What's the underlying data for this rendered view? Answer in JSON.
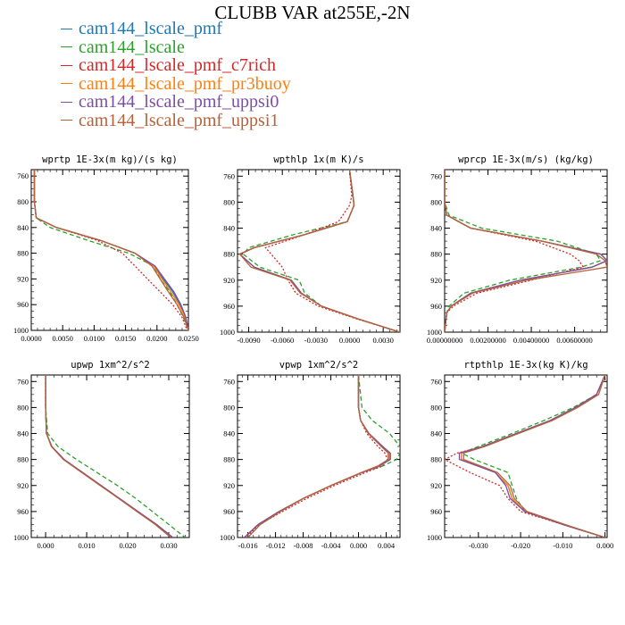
{
  "title": "CLUBB VAR at255E,-2N",
  "legend": [
    {
      "name": "cam144_lscale_pmf",
      "color": "#1f77b4"
    },
    {
      "name": "cam144_lscale",
      "color": "#2ca02c"
    },
    {
      "name": "cam144_lscale_pmf_c7rich",
      "color": "#d62728"
    },
    {
      "name": "cam144_lscale_pmf_pr3buoy",
      "color": "#ff7f0e"
    },
    {
      "name": "cam144_lscale_pmf_uppsi0",
      "color": "#7b4fa0"
    },
    {
      "name": "cam144_lscale_pmf_uppsi1",
      "color": "#b5623a"
    }
  ],
  "chart_data": [
    {
      "type": "line",
      "title": "wprtp  1E-3x(m kg)/(s kg)",
      "xlim": [
        0,
        0.025
      ],
      "ylim": [
        1000,
        750
      ],
      "xticks": [
        "0.0000",
        "0.0050",
        "0.0100",
        "0.0150",
        "0.0200",
        "0.0250"
      ],
      "xtick_values": [
        0,
        0.005,
        0.01,
        0.015,
        0.02,
        0.025
      ],
      "yticks": [
        "760",
        "800",
        "840",
        "880",
        "920",
        "960",
        "1000"
      ],
      "ytick_values": [
        760,
        800,
        840,
        880,
        920,
        960,
        1000
      ],
      "y": [
        750,
        800,
        825,
        840,
        860,
        880,
        900,
        920,
        940,
        960,
        980,
        1000
      ],
      "series": [
        {
          "color": "#1f77b4",
          "dash": "",
          "values": [
            0.0005,
            0.0005,
            0.0008,
            0.004,
            0.011,
            0.0165,
            0.0195,
            0.021,
            0.0225,
            0.0237,
            0.0245,
            0.025
          ]
        },
        {
          "color": "#2ca02c",
          "dash": "5,3",
          "values": [
            0.0005,
            0.0005,
            0.0008,
            0.003,
            0.009,
            0.0155,
            0.0195,
            0.0205,
            0.022,
            0.0232,
            0.0242,
            0.025
          ]
        },
        {
          "color": "#d62728",
          "dash": "2,2",
          "values": [
            0.0005,
            0.0005,
            0.0008,
            0.004,
            0.0105,
            0.0145,
            0.0165,
            0.0185,
            0.0205,
            0.0225,
            0.024,
            0.0248
          ]
        },
        {
          "color": "#ff7f0e",
          "dash": "",
          "values": [
            0.0005,
            0.0005,
            0.0008,
            0.004,
            0.011,
            0.0165,
            0.0195,
            0.0208,
            0.0222,
            0.0235,
            0.0245,
            0.025
          ]
        },
        {
          "color": "#7b4fa0",
          "dash": "",
          "values": [
            0.0005,
            0.0005,
            0.0008,
            0.004,
            0.011,
            0.0165,
            0.0197,
            0.0212,
            0.0227,
            0.0238,
            0.0246,
            0.025
          ]
        },
        {
          "color": "#b5623a",
          "dash": "",
          "values": [
            0.0005,
            0.0005,
            0.0008,
            0.004,
            0.011,
            0.0165,
            0.0192,
            0.0205,
            0.0218,
            0.0232,
            0.0243,
            0.025
          ]
        }
      ]
    },
    {
      "type": "line",
      "title": "wpthlp  1x(m K)/s",
      "xlim": [
        -0.01,
        0.0045
      ],
      "ylim": [
        1000,
        750
      ],
      "xticks": [
        "-0.0090",
        "-0.0060",
        "-0.0030",
        "0.0000",
        "0.0030"
      ],
      "xtick_values": [
        -0.009,
        -0.006,
        -0.003,
        0,
        0.003
      ],
      "yticks": [
        "760",
        "800",
        "840",
        "880",
        "920",
        "960",
        "1000"
      ],
      "ytick_values": [
        760,
        800,
        840,
        880,
        920,
        960,
        1000
      ],
      "y": [
        750,
        790,
        805,
        830,
        850,
        870,
        880,
        900,
        920,
        940,
        960,
        980,
        1000
      ],
      "series": [
        {
          "color": "#1f77b4",
          "dash": "",
          "values": [
            0.0,
            0.0003,
            0.0004,
            -0.0002,
            -0.004,
            -0.0085,
            -0.0098,
            -0.0085,
            -0.0052,
            -0.0043,
            -0.0025,
            0.0008,
            0.0045
          ]
        },
        {
          "color": "#2ca02c",
          "dash": "5,3",
          "values": [
            0.0,
            0.0003,
            0.0004,
            -0.0002,
            -0.005,
            -0.009,
            -0.0095,
            -0.008,
            -0.0045,
            -0.004,
            -0.0025,
            0.0008,
            0.0045
          ]
        },
        {
          "color": "#d62728",
          "dash": "2,2",
          "values": [
            0.0,
            0.0002,
            0.0,
            -0.001,
            -0.004,
            -0.0075,
            -0.007,
            -0.006,
            -0.0055,
            -0.0048,
            -0.0028,
            0.0007,
            0.0045
          ]
        },
        {
          "color": "#ff7f0e",
          "dash": "",
          "values": [
            0.0,
            0.0003,
            0.0004,
            -0.0002,
            -0.004,
            -0.0085,
            -0.0098,
            -0.0085,
            -0.0052,
            -0.0043,
            -0.0025,
            0.0008,
            0.0045
          ]
        },
        {
          "color": "#7b4fa0",
          "dash": "",
          "values": [
            0.0,
            0.0003,
            0.0004,
            -0.0002,
            -0.004,
            -0.0085,
            -0.0098,
            -0.0085,
            -0.0052,
            -0.0043,
            -0.0025,
            0.0008,
            0.0045
          ]
        },
        {
          "color": "#b5623a",
          "dash": "",
          "values": [
            0.0,
            0.0003,
            0.0004,
            -0.0002,
            -0.004,
            -0.0085,
            -0.0098,
            -0.0088,
            -0.0053,
            -0.0044,
            -0.0025,
            0.0008,
            0.0045
          ]
        }
      ]
    },
    {
      "type": "line",
      "title": "wprcp  1E-3x(m/s) (kg/kg)",
      "xlim": [
        0,
        0.0075
      ],
      "ylim": [
        1000,
        750
      ],
      "xticks": [
        "0.00000000",
        "0.00200000",
        "0.00400000",
        "0.00600000"
      ],
      "xtick_values": [
        0,
        0.002,
        0.004,
        0.006
      ],
      "yticks": [
        "760",
        "800",
        "840",
        "880",
        "920",
        "960",
        "1000"
      ],
      "ytick_values": [
        760,
        800,
        840,
        880,
        920,
        960,
        1000
      ],
      "y": [
        750,
        800,
        820,
        840,
        860,
        880,
        890,
        900,
        920,
        940,
        960,
        970,
        1000
      ],
      "series": [
        {
          "color": "#1f77b4",
          "dash": "",
          "values": [
            0,
            0,
            0.0001,
            0.0012,
            0.0045,
            0.0072,
            0.0075,
            0.0068,
            0.0035,
            0.0012,
            0.0003,
            0.0001,
            0
          ]
        },
        {
          "color": "#2ca02c",
          "dash": "5,3",
          "values": [
            0,
            0,
            0.0002,
            0.0017,
            0.0052,
            0.007,
            0.0072,
            0.0063,
            0.003,
            0.0009,
            0.0002,
            0.0001,
            0
          ]
        },
        {
          "color": "#d62728",
          "dash": "2,2",
          "values": [
            0,
            0,
            0.0001,
            0.0012,
            0.0042,
            0.0058,
            0.0062,
            0.0064,
            0.004,
            0.0015,
            0.0004,
            0.0001,
            0
          ]
        },
        {
          "color": "#ff7f0e",
          "dash": "",
          "values": [
            0,
            0,
            0.0001,
            0.0012,
            0.0045,
            0.0072,
            0.0075,
            0.0068,
            0.0035,
            0.0012,
            0.0003,
            0.0001,
            0
          ]
        },
        {
          "color": "#7b4fa0",
          "dash": "",
          "values": [
            0,
            0,
            0.0001,
            0.0012,
            0.0045,
            0.0072,
            0.0075,
            0.0068,
            0.0035,
            0.0012,
            0.0003,
            0.0001,
            0
          ]
        },
        {
          "color": "#b5623a",
          "dash": "",
          "values": [
            0,
            0,
            0.0001,
            0.0012,
            0.0045,
            0.007,
            0.0074,
            0.0075,
            0.0038,
            0.0013,
            0.0003,
            0.0001,
            0
          ]
        }
      ]
    },
    {
      "type": "line",
      "title": "upwp  1xm^2/s^2",
      "xlim": [
        -0.0035,
        0.035
      ],
      "ylim": [
        1000,
        750
      ],
      "xticks": [
        "0.000",
        "0.010",
        "0.020",
        "0.030"
      ],
      "xtick_values": [
        0,
        0.01,
        0.02,
        0.03
      ],
      "yticks": [
        "760",
        "800",
        "840",
        "880",
        "920",
        "960",
        "1000"
      ],
      "ytick_values": [
        760,
        800,
        840,
        880,
        920,
        960,
        1000
      ],
      "y": [
        750,
        800,
        840,
        860,
        880,
        900,
        920,
        940,
        960,
        980,
        1000
      ],
      "series": [
        {
          "color": "#1f77b4",
          "dash": "",
          "values": [
            0.0,
            0.0,
            0.0002,
            0.0015,
            0.0045,
            0.009,
            0.0135,
            0.018,
            0.0225,
            0.027,
            0.031
          ]
        },
        {
          "color": "#2ca02c",
          "dash": "5,3",
          "values": [
            0.0,
            0.0,
            0.0005,
            0.003,
            0.0075,
            0.0125,
            0.0175,
            0.022,
            0.026,
            0.03,
            0.034
          ]
        },
        {
          "color": "#d62728",
          "dash": "2,2",
          "values": [
            0.0,
            0.0,
            0.0002,
            0.0015,
            0.0045,
            0.009,
            0.0135,
            0.018,
            0.0225,
            0.027,
            0.031
          ]
        },
        {
          "color": "#ff7f0e",
          "dash": "",
          "values": [
            0.0,
            0.0,
            0.0002,
            0.0015,
            0.0045,
            0.009,
            0.0135,
            0.018,
            0.0225,
            0.027,
            0.031
          ]
        },
        {
          "color": "#7b4fa0",
          "dash": "",
          "values": [
            0.0,
            0.0,
            0.0002,
            0.0015,
            0.0045,
            0.009,
            0.0135,
            0.018,
            0.0225,
            0.027,
            0.031
          ]
        },
        {
          "color": "#b5623a",
          "dash": "",
          "values": [
            0.0,
            0.0,
            0.0002,
            0.0014,
            0.0043,
            0.0088,
            0.0133,
            0.0178,
            0.0222,
            0.0267,
            0.0305
          ]
        }
      ]
    },
    {
      "type": "line",
      "title": "vpwp  1xm^2/s^2",
      "xlim": [
        -0.0175,
        0.006
      ],
      "ylim": [
        1000,
        750
      ],
      "xticks": [
        "-0.016",
        "-0.012",
        "-0.008",
        "-0.004",
        "0.000",
        "0.004"
      ],
      "xtick_values": [
        -0.016,
        -0.012,
        -0.008,
        -0.004,
        0,
        0.004
      ],
      "yticks": [
        "760",
        "800",
        "840",
        "880",
        "920",
        "960",
        "1000"
      ],
      "ytick_values": [
        760,
        800,
        840,
        880,
        920,
        960,
        1000
      ],
      "y": [
        750,
        800,
        820,
        840,
        860,
        870,
        880,
        890,
        900,
        920,
        940,
        960,
        980,
        1000
      ],
      "series": [
        {
          "color": "#1f77b4",
          "dash": "",
          "values": [
            0.0,
            0.0,
            0.0003,
            0.0015,
            0.0035,
            0.0045,
            0.0045,
            0.003,
            0.0005,
            -0.004,
            -0.008,
            -0.0115,
            -0.0145,
            -0.0165
          ]
        },
        {
          "color": "#2ca02c",
          "dash": "5,3",
          "values": [
            0.0,
            0.0005,
            0.002,
            0.0045,
            0.006,
            0.006,
            0.0055,
            0.0035,
            0.0005,
            -0.004,
            -0.008,
            -0.0115,
            -0.0145,
            -0.0165
          ]
        },
        {
          "color": "#d62728",
          "dash": "2,2",
          "values": [
            0.0,
            0.0,
            0.0003,
            0.0012,
            0.0028,
            0.0038,
            0.0042,
            0.0035,
            0.001,
            -0.0035,
            -0.0075,
            -0.011,
            -0.0143,
            -0.0163
          ]
        },
        {
          "color": "#ff7f0e",
          "dash": "",
          "values": [
            0.0,
            0.0,
            0.0003,
            0.0015,
            0.0035,
            0.0045,
            0.0045,
            0.003,
            0.0005,
            -0.004,
            -0.008,
            -0.0115,
            -0.0145,
            -0.0165
          ]
        },
        {
          "color": "#7b4fa0",
          "dash": "",
          "values": [
            0.0,
            0.0,
            0.0003,
            0.0015,
            0.0035,
            0.0046,
            0.0046,
            0.003,
            0.0005,
            -0.004,
            -0.008,
            -0.0115,
            -0.0145,
            -0.0165
          ]
        },
        {
          "color": "#b5623a",
          "dash": "",
          "values": [
            0.0,
            0.0,
            0.0003,
            0.0014,
            0.0033,
            0.0043,
            0.0043,
            0.0028,
            0.0004,
            -0.004,
            -0.008,
            -0.0113,
            -0.0142,
            -0.016
          ]
        }
      ]
    },
    {
      "type": "line",
      "title": "rtpthlp  1E-3x(kg K)/kg",
      "xlim": [
        -0.038,
        0.0005
      ],
      "ylim": [
        1000,
        750
      ],
      "xticks": [
        "-0.030",
        "-0.020",
        "-0.010",
        "0.000"
      ],
      "xtick_values": [
        -0.03,
        -0.02,
        -0.01,
        0
      ],
      "yticks": [
        "760",
        "800",
        "840",
        "880",
        "920",
        "960",
        "1000"
      ],
      "ytick_values": [
        760,
        800,
        840,
        880,
        920,
        960,
        1000
      ],
      "y": [
        750,
        780,
        800,
        820,
        840,
        860,
        870,
        880,
        900,
        920,
        940,
        960,
        980,
        1000
      ],
      "series": [
        {
          "color": "#1f77b4",
          "dash": "",
          "values": [
            0.0,
            -0.002,
            -0.007,
            -0.013,
            -0.021,
            -0.029,
            -0.034,
            -0.034,
            -0.026,
            -0.023,
            -0.022,
            -0.019,
            -0.01,
            0.0
          ]
        },
        {
          "color": "#2ca02c",
          "dash": "5,3",
          "values": [
            0.0,
            -0.002,
            -0.0075,
            -0.0145,
            -0.022,
            -0.03,
            -0.034,
            -0.031,
            -0.023,
            -0.022,
            -0.021,
            -0.019,
            -0.01,
            0.0
          ]
        },
        {
          "color": "#d62728",
          "dash": "2,2",
          "values": [
            0.0,
            -0.002,
            -0.007,
            -0.013,
            -0.021,
            -0.029,
            -0.035,
            -0.038,
            -0.032,
            -0.025,
            -0.023,
            -0.02,
            -0.01,
            0.0
          ]
        },
        {
          "color": "#ff7f0e",
          "dash": "",
          "values": [
            0.0,
            -0.002,
            -0.007,
            -0.013,
            -0.021,
            -0.029,
            -0.034,
            -0.034,
            -0.026,
            -0.023,
            -0.022,
            -0.019,
            -0.01,
            0.0
          ]
        },
        {
          "color": "#7b4fa0",
          "dash": "",
          "values": [
            0.0,
            -0.002,
            -0.007,
            -0.013,
            -0.021,
            -0.029,
            -0.0345,
            -0.0345,
            -0.026,
            -0.0235,
            -0.0225,
            -0.019,
            -0.01,
            0.0
          ]
        },
        {
          "color": "#b5623a",
          "dash": "",
          "values": [
            0.0,
            -0.0015,
            -0.0065,
            -0.0125,
            -0.0205,
            -0.0285,
            -0.0335,
            -0.0335,
            -0.0255,
            -0.0225,
            -0.0215,
            -0.0185,
            -0.0095,
            0.0
          ]
        }
      ]
    }
  ]
}
